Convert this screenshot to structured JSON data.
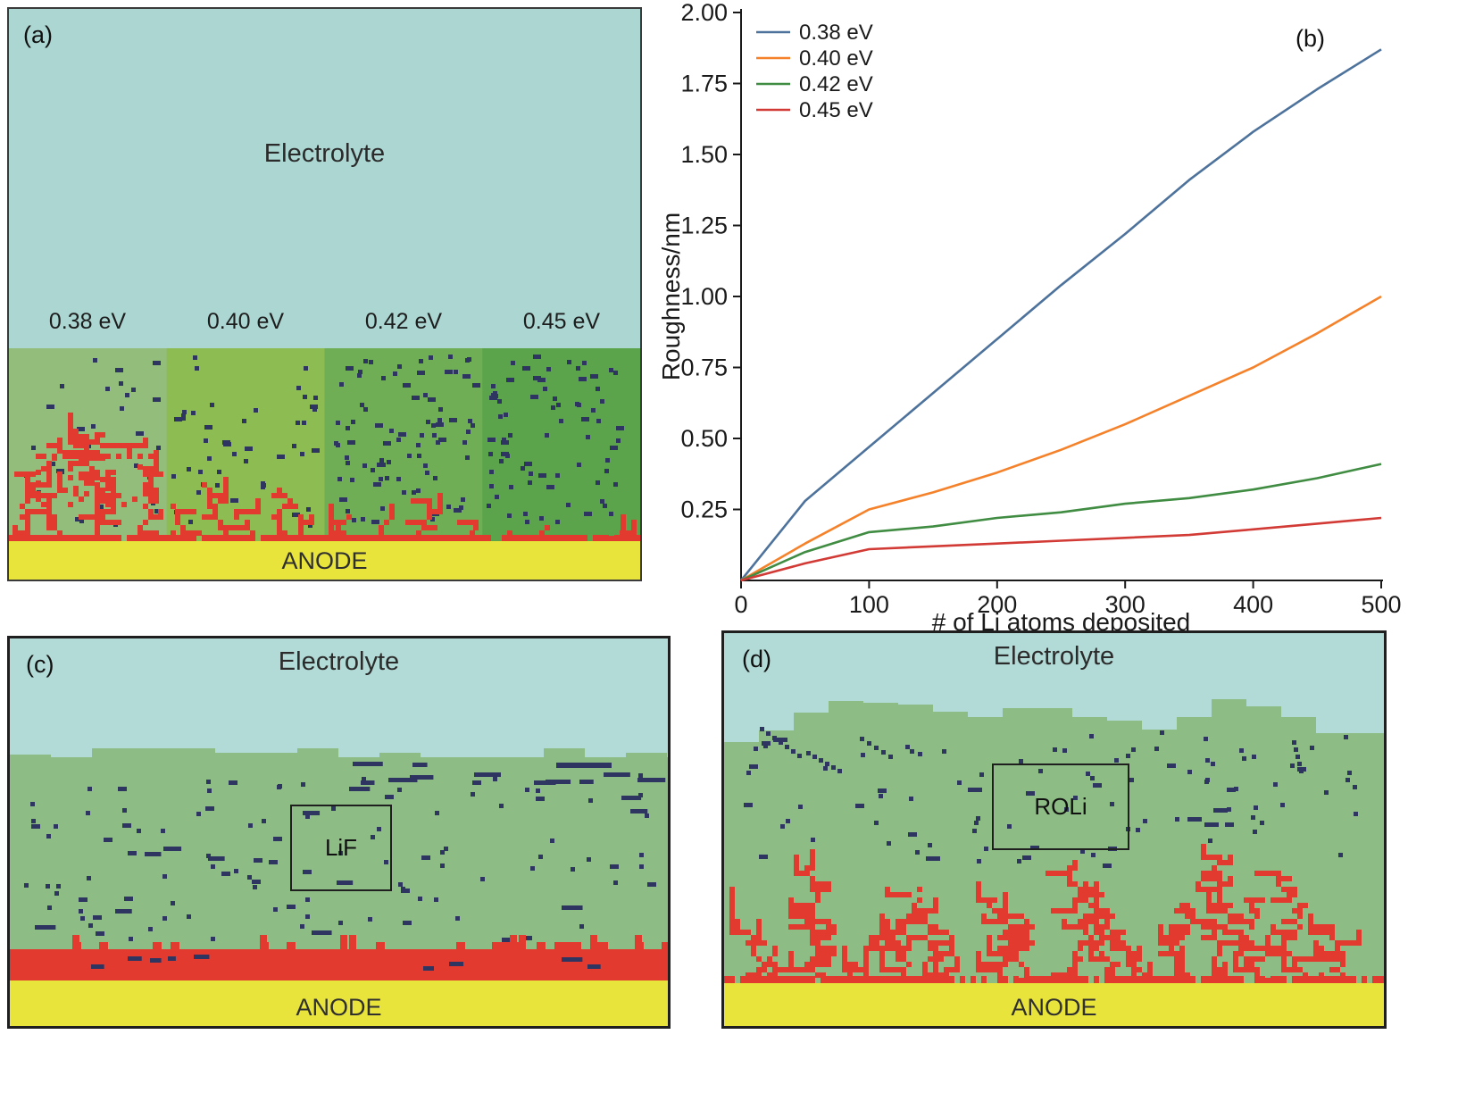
{
  "palette": {
    "background": "#ffffff",
    "electrolyte": "#abd6d2",
    "electrolyte_cd": "#b2dad6",
    "sei_green": "#8dbc85",
    "anode_yellow": "#e9e43c",
    "dendrite_red": "#e23a2f",
    "li_navy": "#2e3560",
    "panel_border": "#222222",
    "axis_color": "#1a1a1a"
  },
  "figure": {
    "panel_a": {
      "label": "(a)",
      "electrolyte_label": "Electrolyte",
      "anode_label": "ANODE",
      "columns": [
        {
          "label": "0.38 eV",
          "color": "#93bd7b"
        },
        {
          "label": "0.40 eV",
          "color": "#8cbc52"
        },
        {
          "label": "0.42 eV",
          "color": "#6fae54"
        },
        {
          "label": "0.45 eV",
          "color": "#5ca44b"
        }
      ]
    },
    "panel_b": {
      "label": "(b)"
    },
    "panel_c": {
      "label": "(c)",
      "electrolyte_label": "Electrolyte",
      "anode_label": "ANODE",
      "region_label": "LiF"
    },
    "panel_d": {
      "label": "(d)",
      "electrolyte_label": "Electrolyte",
      "anode_label": "ANODE",
      "region_label": "ROLi"
    }
  },
  "chart_data": {
    "type": "line",
    "title": "",
    "xlabel": "# of Li atoms deposited",
    "ylabel": "Roughness/nm",
    "xlim": [
      0,
      500
    ],
    "ylim": [
      0,
      2.0
    ],
    "xticks": [
      0,
      100,
      200,
      300,
      400,
      500
    ],
    "yticks": [
      0.25,
      0.5,
      0.75,
      1.0,
      1.25,
      1.5,
      1.75,
      2.0
    ],
    "grid": false,
    "legend_position": "upper left",
    "x": [
      0,
      50,
      100,
      150,
      200,
      250,
      300,
      350,
      400,
      450,
      500
    ],
    "series": [
      {
        "name": "0.38 eV",
        "color": "#4d729b",
        "values": [
          0,
          0.28,
          0.47,
          0.66,
          0.85,
          1.04,
          1.22,
          1.41,
          1.58,
          1.73,
          1.87
        ]
      },
      {
        "name": "0.40 eV",
        "color": "#f5822a",
        "values": [
          0,
          0.13,
          0.25,
          0.31,
          0.38,
          0.46,
          0.55,
          0.65,
          0.75,
          0.87,
          1.0
        ]
      },
      {
        "name": "0.42 eV",
        "color": "#3f8c42",
        "values": [
          0,
          0.1,
          0.17,
          0.19,
          0.22,
          0.24,
          0.27,
          0.29,
          0.32,
          0.36,
          0.41
        ]
      },
      {
        "name": "0.45 eV",
        "color": "#d23a35",
        "values": [
          0,
          0.06,
          0.11,
          0.12,
          0.13,
          0.14,
          0.15,
          0.16,
          0.18,
          0.2,
          0.22
        ]
      }
    ]
  }
}
